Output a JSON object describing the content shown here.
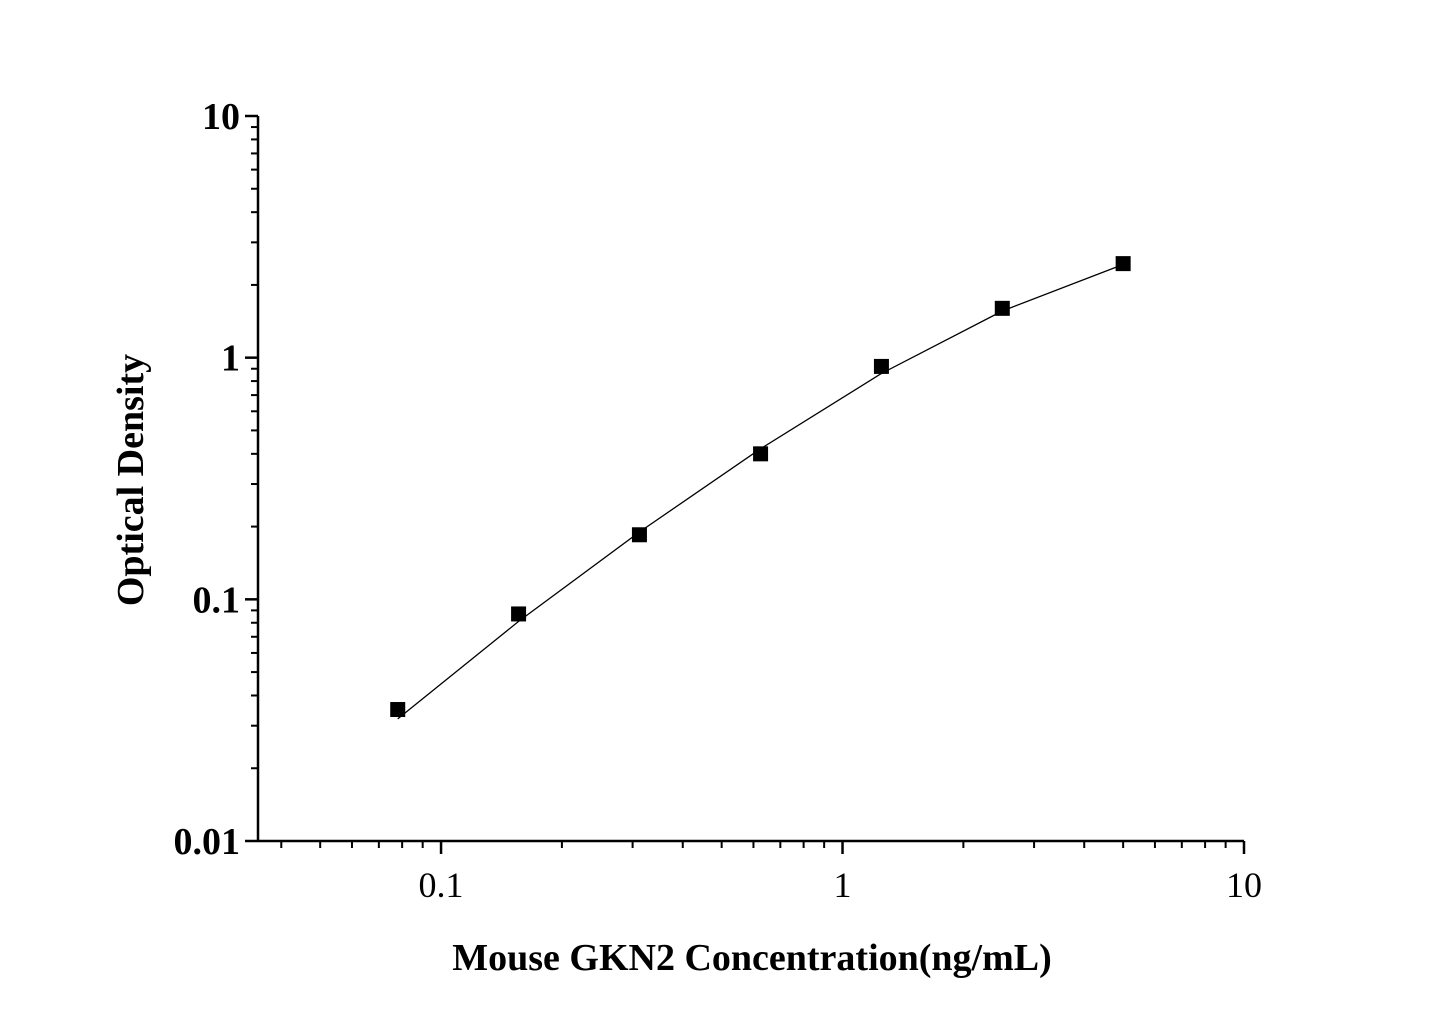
{
  "chart_data": {
    "type": "scatter",
    "title": "",
    "xlabel": "Mouse GKN2 Concentration(ng/mL)",
    "ylabel": "Optical Density",
    "x_scale": "log",
    "y_scale": "log",
    "xlim": [
      0.035,
      10
    ],
    "ylim": [
      0.01,
      10
    ],
    "x_ticks": [
      0.1,
      1,
      10
    ],
    "x_tick_labels": [
      "0.1",
      "1",
      "10"
    ],
    "y_ticks": [
      0.01,
      0.1,
      1,
      10
    ],
    "y_tick_labels": [
      "0.01",
      "0.1",
      "1",
      "10"
    ],
    "grid": false,
    "legend": "none",
    "series": [
      {
        "marker": "square",
        "color": "#000000",
        "x": [
          0.078,
          0.156,
          0.312,
          0.625,
          1.25,
          2.5,
          5
        ],
        "y": [
          0.035,
          0.087,
          0.185,
          0.4,
          0.92,
          1.6,
          2.45
        ]
      },
      {
        "style": "fitted-line",
        "color": "#000000",
        "x": [
          0.078,
          0.156,
          0.312,
          0.625,
          1.25,
          2.5,
          5
        ],
        "y": [
          0.032,
          0.081,
          0.19,
          0.42,
          0.86,
          1.56,
          2.43
        ]
      }
    ]
  }
}
